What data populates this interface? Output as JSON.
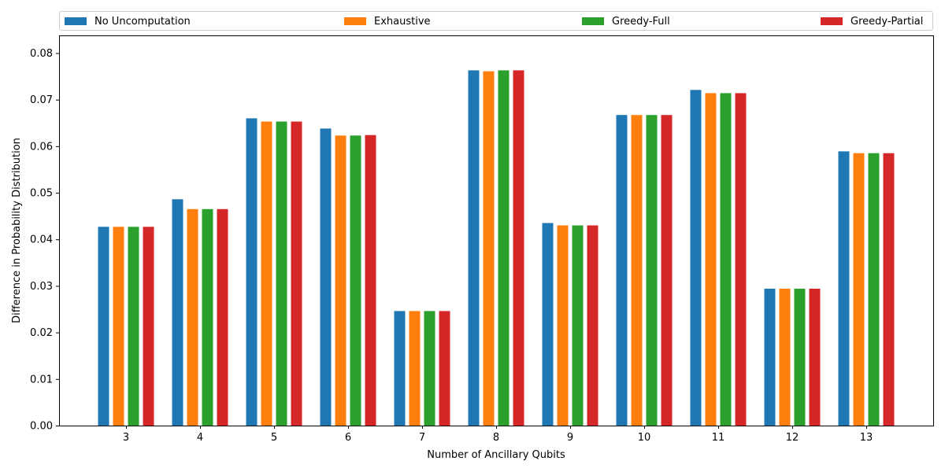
{
  "chart_data": {
    "type": "bar",
    "title": "",
    "xlabel": "Number of Ancillary Qubits",
    "ylabel": "Difference in Probability Distribution",
    "ylim": [
      0,
      0.0838
    ],
    "yticks": [
      "0.00",
      "0.01",
      "0.02",
      "0.03",
      "0.04",
      "0.05",
      "0.06",
      "0.07",
      "0.08"
    ],
    "grid": false,
    "legend_placement": "top, spanning full width above plot",
    "categories": [
      "3",
      "4",
      "5",
      "6",
      "7",
      "8",
      "9",
      "10",
      "11",
      "12",
      "13"
    ],
    "series": [
      {
        "name": "No Uncomputation",
        "color": "#1f77b4",
        "values": [
          0.0427,
          0.0486,
          0.066,
          0.0638,
          0.0246,
          0.0763,
          0.0435,
          0.0667,
          0.0721,
          0.0294,
          0.0589
        ]
      },
      {
        "name": "Exhaustive",
        "color": "#ff7f0e",
        "values": [
          0.0427,
          0.0465,
          0.0653,
          0.0623,
          0.0246,
          0.0761,
          0.043,
          0.0667,
          0.0714,
          0.0294,
          0.0585
        ]
      },
      {
        "name": "Greedy-Full",
        "color": "#2ca02c",
        "values": [
          0.0427,
          0.0465,
          0.0653,
          0.0623,
          0.0246,
          0.0763,
          0.043,
          0.0667,
          0.0714,
          0.0294,
          0.0585
        ]
      },
      {
        "name": "Greedy-Partial",
        "color": "#d62728",
        "values": [
          0.0427,
          0.0465,
          0.0653,
          0.0624,
          0.0246,
          0.0763,
          0.043,
          0.0667,
          0.0714,
          0.0294,
          0.0585
        ]
      }
    ]
  }
}
